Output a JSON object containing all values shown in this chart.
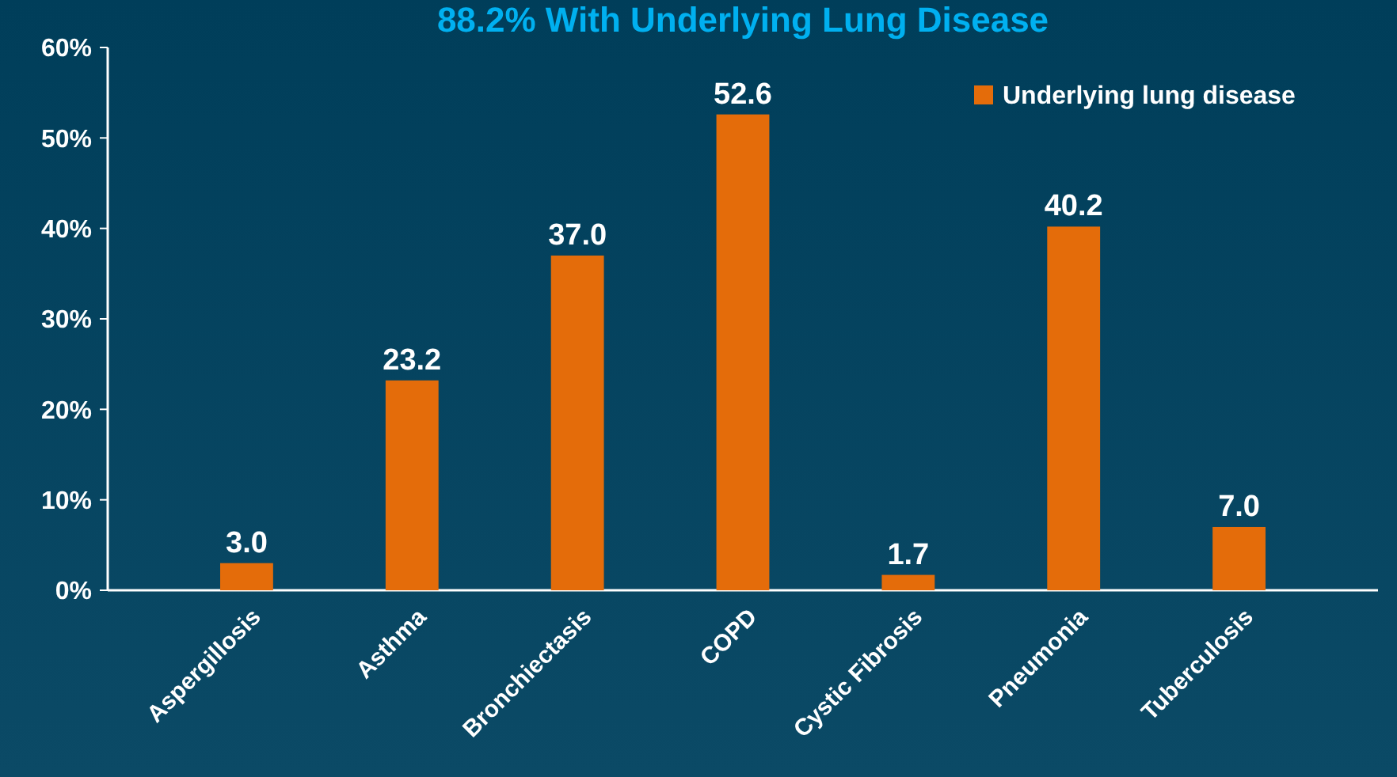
{
  "chart_data": {
    "type": "bar",
    "title": "88.2% With Underlying Lung Disease",
    "categories": [
      "Aspergillosis",
      "Asthma",
      "Bronchiectasis",
      "COPD",
      "Cystic Fibrosis",
      "Pneumonia",
      "Tuberculosis"
    ],
    "series": [
      {
        "name": "Underlying lung disease",
        "color": "#e46c0a",
        "values": [
          3.0,
          23.2,
          37.0,
          52.6,
          1.7,
          40.2,
          7.0
        ],
        "value_labels": [
          "3.0",
          "23.2",
          "37.0",
          "52.6",
          "1.7",
          "40.2",
          "7.0"
        ]
      }
    ],
    "ylim": [
      0,
      60
    ],
    "yticks": [
      {
        "value": 0,
        "label": "0%"
      },
      {
        "value": 10,
        "label": "10%"
      },
      {
        "value": 20,
        "label": "20%"
      },
      {
        "value": 30,
        "label": "30%"
      },
      {
        "value": 40,
        "label": "40%"
      },
      {
        "value": 50,
        "label": "50%"
      },
      {
        "value": 60,
        "label": "60%"
      }
    ],
    "legend": "top right",
    "grid": false
  }
}
